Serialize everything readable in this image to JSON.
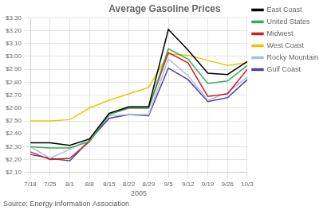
{
  "chart_data": {
    "type": "line",
    "title": "Average Gasoline Prices",
    "x_label": "2005",
    "annotations": [
      "Source: Energy Information Association"
    ],
    "categories": [
      "7/18",
      "7/25",
      "8/1",
      "8/8",
      "8/15",
      "8/22",
      "8/29",
      "9/5",
      "9/12",
      "9/19",
      "9/26",
      "10/3"
    ],
    "series": [
      {
        "name": "East Coast",
        "color": "#000000",
        "values": [
          2.33,
          2.33,
          2.31,
          2.36,
          2.56,
          2.61,
          2.61,
          3.21,
          3.05,
          2.87,
          2.86,
          2.96
        ]
      },
      {
        "name": "United States",
        "color": "#3aaa5e",
        "values": [
          2.3,
          2.29,
          2.29,
          2.34,
          2.55,
          2.6,
          2.6,
          3.06,
          2.98,
          2.79,
          2.81,
          2.93
        ]
      },
      {
        "name": "Midwest",
        "color": "#cc2222",
        "values": [
          2.26,
          2.2,
          2.21,
          2.34,
          2.55,
          2.6,
          2.6,
          3.03,
          2.95,
          2.69,
          2.71,
          2.9
        ]
      },
      {
        "name": "West Coast",
        "color": "#e8c800",
        "values": [
          2.5,
          2.5,
          2.51,
          2.6,
          2.66,
          2.71,
          2.76,
          3.02,
          3.01,
          2.97,
          2.93,
          2.95
        ]
      },
      {
        "name": "Rocky Mountain",
        "color": "#aabfe0",
        "values": [
          2.3,
          2.21,
          2.28,
          2.36,
          2.54,
          2.55,
          2.55,
          2.98,
          2.85,
          2.66,
          2.72,
          2.84
        ]
      },
      {
        "name": "Gulf Coast",
        "color": "#5540a8",
        "values": [
          2.24,
          2.21,
          2.19,
          2.35,
          2.52,
          2.55,
          2.54,
          2.91,
          2.82,
          2.65,
          2.68,
          2.82
        ]
      }
    ],
    "ylim": [
      2.1,
      3.3
    ],
    "yticks": [
      {
        "value": 2.1,
        "label": "$2.10"
      },
      {
        "value": 2.2,
        "label": "$2.20"
      },
      {
        "value": 2.3,
        "label": "$2.30"
      },
      {
        "value": 2.4,
        "label": "$2.40"
      },
      {
        "value": 2.5,
        "label": "$2.50"
      },
      {
        "value": 2.6,
        "label": "$2.60"
      },
      {
        "value": 2.7,
        "label": "$2.70"
      },
      {
        "value": 2.8,
        "label": "$2.80"
      },
      {
        "value": 2.9,
        "label": "$2.90"
      },
      {
        "value": 3.0,
        "label": "$3.00"
      },
      {
        "value": 3.1,
        "label": "$3.10"
      },
      {
        "value": 3.2,
        "label": "$3.20"
      },
      {
        "value": 3.3,
        "label": "$3.30"
      }
    ],
    "grid": true,
    "legend": "right"
  }
}
